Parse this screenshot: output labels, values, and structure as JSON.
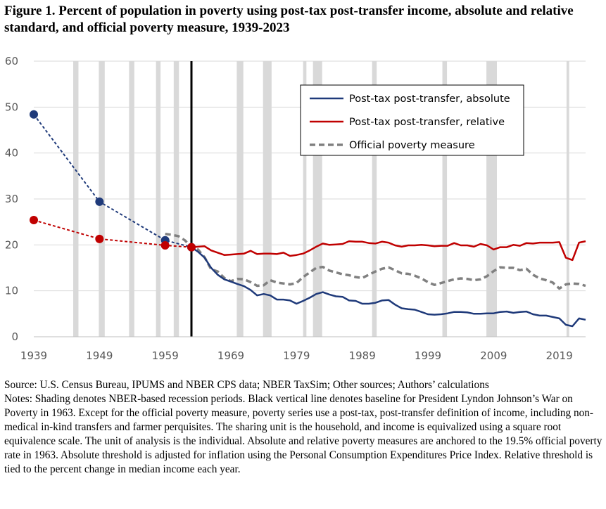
{
  "title": "Figure 1. Percent of population in poverty using post-tax post-transfer income, absolute and relative standard, and official poverty measure, 1939-2023",
  "source_text": "Source: U.S. Census Bureau, IPUMS and NBER CPS data; NBER TaxSim; Other sources; Authors’ calculations",
  "notes_text": "Notes: Shading denotes NBER-based recession periods. Black vertical line denotes baseline for President Lyndon Johnson’s War on Poverty in 1963. Except for the official poverty measure, poverty series use a post-tax, post-transfer definition of income, including non-medical in-kind transfers and farmer perquisites. The sharing unit is the household, and income is equivalized using a square root equivalence scale. The unit of analysis is the individual. Absolute and relative poverty measures are anchored to the 19.5% official poverty rate in 1963. Absolute threshold is adjusted for inflation using the Personal Consumption Expenditures Price Index. Relative threshold is tied to the percent change in median income each year.",
  "chart_data": {
    "type": "line",
    "title": "Figure 1. Percent of population in poverty using post-tax post-transfer income, absolute and relative standard, and official poverty measure, 1939-2023",
    "xlabel": "",
    "ylabel": "",
    "xlim": [
      1939,
      2023
    ],
    "ylim": [
      0,
      60
    ],
    "x_ticks": [
      1939,
      1949,
      1959,
      1969,
      1979,
      1989,
      1999,
      2009,
      2019
    ],
    "y_ticks": [
      0,
      10,
      20,
      30,
      40,
      50,
      60
    ],
    "grid": "horizontal",
    "legend_position": "top-right",
    "baseline_year": 1963,
    "recessions": [
      [
        1945,
        1945.8
      ],
      [
        1948.9,
        1949.8
      ],
      [
        1953.5,
        1954.3
      ],
      [
        1957.6,
        1958.3
      ],
      [
        1960.3,
        1961.1
      ],
      [
        1969.9,
        1970.9
      ],
      [
        1973.9,
        1975.2
      ],
      [
        1980,
        1980.5
      ],
      [
        1981.5,
        1982.9
      ],
      [
        1990.5,
        1991.2
      ],
      [
        2001.2,
        2001.9
      ],
      [
        2007.9,
        2009.5
      ],
      [
        2020.1,
        2020.5
      ]
    ],
    "colors": {
      "absolute": "#1f3a7a",
      "relative": "#c00000",
      "official": "#808080",
      "recession": "#d9d9d9",
      "baseline": "#000000",
      "grid": "#d9d9d9"
    },
    "series": [
      {
        "name": "Post-tax post-transfer, absolute",
        "color": "#1f3a7a",
        "points": [
          [
            1939,
            48.4
          ],
          [
            1949,
            29.4
          ],
          [
            1959,
            21.0
          ],
          [
            1963,
            19.5
          ],
          [
            1964,
            18.5
          ],
          [
            1965,
            17.2
          ],
          [
            1966,
            15.0
          ],
          [
            1967,
            13.5
          ],
          [
            1968,
            12.5
          ],
          [
            1969,
            12.0
          ],
          [
            1970,
            11.5
          ],
          [
            1971,
            11.0
          ],
          [
            1972,
            10.2
          ],
          [
            1973,
            9.0
          ],
          [
            1974,
            9.3
          ],
          [
            1975,
            9.0
          ],
          [
            1976,
            8.1
          ],
          [
            1977,
            8.1
          ],
          [
            1978,
            7.9
          ],
          [
            1979,
            7.2
          ],
          [
            1980,
            7.8
          ],
          [
            1981,
            8.5
          ],
          [
            1982,
            9.3
          ],
          [
            1983,
            9.7
          ],
          [
            1984,
            9.2
          ],
          [
            1985,
            8.8
          ],
          [
            1986,
            8.7
          ],
          [
            1987,
            7.9
          ],
          [
            1988,
            7.8
          ],
          [
            1989,
            7.2
          ],
          [
            1990,
            7.2
          ],
          [
            1991,
            7.4
          ],
          [
            1992,
            7.9
          ],
          [
            1993,
            8.0
          ],
          [
            1994,
            7.0
          ],
          [
            1995,
            6.2
          ],
          [
            1996,
            6.0
          ],
          [
            1997,
            5.9
          ],
          [
            1998,
            5.4
          ],
          [
            1999,
            4.9
          ],
          [
            2000,
            4.8
          ],
          [
            2001,
            4.9
          ],
          [
            2002,
            5.1
          ],
          [
            2003,
            5.4
          ],
          [
            2004,
            5.4
          ],
          [
            2005,
            5.3
          ],
          [
            2006,
            5.0
          ],
          [
            2007,
            5.0
          ],
          [
            2008,
            5.1
          ],
          [
            2009,
            5.1
          ],
          [
            2010,
            5.4
          ],
          [
            2011,
            5.5
          ],
          [
            2012,
            5.2
          ],
          [
            2013,
            5.4
          ],
          [
            2014,
            5.5
          ],
          [
            2015,
            4.9
          ],
          [
            2016,
            4.6
          ],
          [
            2017,
            4.6
          ],
          [
            2018,
            4.3
          ],
          [
            2019,
            4.0
          ],
          [
            2020,
            2.6
          ],
          [
            2021,
            2.3
          ],
          [
            2022,
            4.0
          ],
          [
            2023,
            3.7
          ]
        ]
      },
      {
        "name": "Post-tax post-transfer, relative",
        "color": "#c00000",
        "points": [
          [
            1939,
            25.4
          ],
          [
            1949,
            21.3
          ],
          [
            1959,
            19.9
          ],
          [
            1963,
            19.5
          ],
          [
            1964,
            19.6
          ],
          [
            1965,
            19.7
          ],
          [
            1966,
            18.8
          ],
          [
            1967,
            18.3
          ],
          [
            1968,
            17.8
          ],
          [
            1969,
            17.9
          ],
          [
            1970,
            18.0
          ],
          [
            1971,
            18.1
          ],
          [
            1972,
            18.7
          ],
          [
            1973,
            18.0
          ],
          [
            1974,
            18.1
          ],
          [
            1975,
            18.1
          ],
          [
            1976,
            18.0
          ],
          [
            1977,
            18.3
          ],
          [
            1978,
            17.6
          ],
          [
            1979,
            17.8
          ],
          [
            1980,
            18.1
          ],
          [
            1981,
            18.8
          ],
          [
            1982,
            19.6
          ],
          [
            1983,
            20.3
          ],
          [
            1984,
            20.0
          ],
          [
            1985,
            20.1
          ],
          [
            1986,
            20.2
          ],
          [
            1987,
            20.8
          ],
          [
            1988,
            20.7
          ],
          [
            1989,
            20.7
          ],
          [
            1990,
            20.4
          ],
          [
            1991,
            20.3
          ],
          [
            1992,
            20.7
          ],
          [
            1993,
            20.5
          ],
          [
            1994,
            19.9
          ],
          [
            1995,
            19.6
          ],
          [
            1996,
            19.9
          ],
          [
            1997,
            19.9
          ],
          [
            1998,
            20.0
          ],
          [
            1999,
            19.9
          ],
          [
            2000,
            19.7
          ],
          [
            2001,
            19.8
          ],
          [
            2002,
            19.8
          ],
          [
            2003,
            20.4
          ],
          [
            2004,
            19.9
          ],
          [
            2005,
            19.9
          ],
          [
            2006,
            19.6
          ],
          [
            2007,
            20.2
          ],
          [
            2008,
            19.9
          ],
          [
            2009,
            19.0
          ],
          [
            2010,
            19.5
          ],
          [
            2011,
            19.5
          ],
          [
            2012,
            20.0
          ],
          [
            2013,
            19.8
          ],
          [
            2014,
            20.4
          ],
          [
            2015,
            20.3
          ],
          [
            2016,
            20.5
          ],
          [
            2017,
            20.5
          ],
          [
            2018,
            20.5
          ],
          [
            2019,
            20.6
          ],
          [
            2020,
            17.2
          ],
          [
            2021,
            16.7
          ],
          [
            2022,
            20.5
          ],
          [
            2023,
            20.8
          ]
        ]
      },
      {
        "name": "Official poverty measure",
        "color": "#808080",
        "points": [
          [
            1959,
            22.4
          ],
          [
            1960,
            22.2
          ],
          [
            1961,
            21.9
          ],
          [
            1962,
            21.0
          ],
          [
            1963,
            19.5
          ],
          [
            1964,
            19.0
          ],
          [
            1965,
            17.3
          ],
          [
            1966,
            14.7
          ],
          [
            1967,
            14.2
          ],
          [
            1968,
            12.8
          ],
          [
            1969,
            12.1
          ],
          [
            1970,
            12.6
          ],
          [
            1971,
            12.5
          ],
          [
            1972,
            11.9
          ],
          [
            1973,
            11.1
          ],
          [
            1974,
            11.2
          ],
          [
            1975,
            12.3
          ],
          [
            1976,
            11.8
          ],
          [
            1977,
            11.6
          ],
          [
            1978,
            11.4
          ],
          [
            1979,
            11.7
          ],
          [
            1980,
            13.0
          ],
          [
            1981,
            14.0
          ],
          [
            1982,
            15.0
          ],
          [
            1983,
            15.2
          ],
          [
            1984,
            14.4
          ],
          [
            1985,
            14.0
          ],
          [
            1986,
            13.6
          ],
          [
            1987,
            13.4
          ],
          [
            1988,
            13.0
          ],
          [
            1989,
            12.8
          ],
          [
            1990,
            13.5
          ],
          [
            1991,
            14.2
          ],
          [
            1992,
            14.8
          ],
          [
            1993,
            15.1
          ],
          [
            1994,
            14.5
          ],
          [
            1995,
            13.8
          ],
          [
            1996,
            13.7
          ],
          [
            1997,
            13.3
          ],
          [
            1998,
            12.7
          ],
          [
            1999,
            11.9
          ],
          [
            2000,
            11.3
          ],
          [
            2001,
            11.7
          ],
          [
            2002,
            12.1
          ],
          [
            2003,
            12.5
          ],
          [
            2004,
            12.7
          ],
          [
            2005,
            12.6
          ],
          [
            2006,
            12.3
          ],
          [
            2007,
            12.5
          ],
          [
            2008,
            13.2
          ],
          [
            2009,
            14.3
          ],
          [
            2010,
            15.1
          ],
          [
            2011,
            15.0
          ],
          [
            2012,
            15.0
          ],
          [
            2013,
            14.5
          ],
          [
            2014,
            14.8
          ],
          [
            2015,
            13.5
          ],
          [
            2016,
            12.7
          ],
          [
            2017,
            12.3
          ],
          [
            2018,
            11.8
          ],
          [
            2019,
            10.5
          ],
          [
            2020,
            11.4
          ],
          [
            2021,
            11.6
          ],
          [
            2022,
            11.5
          ],
          [
            2023,
            11.1
          ]
        ]
      }
    ]
  }
}
